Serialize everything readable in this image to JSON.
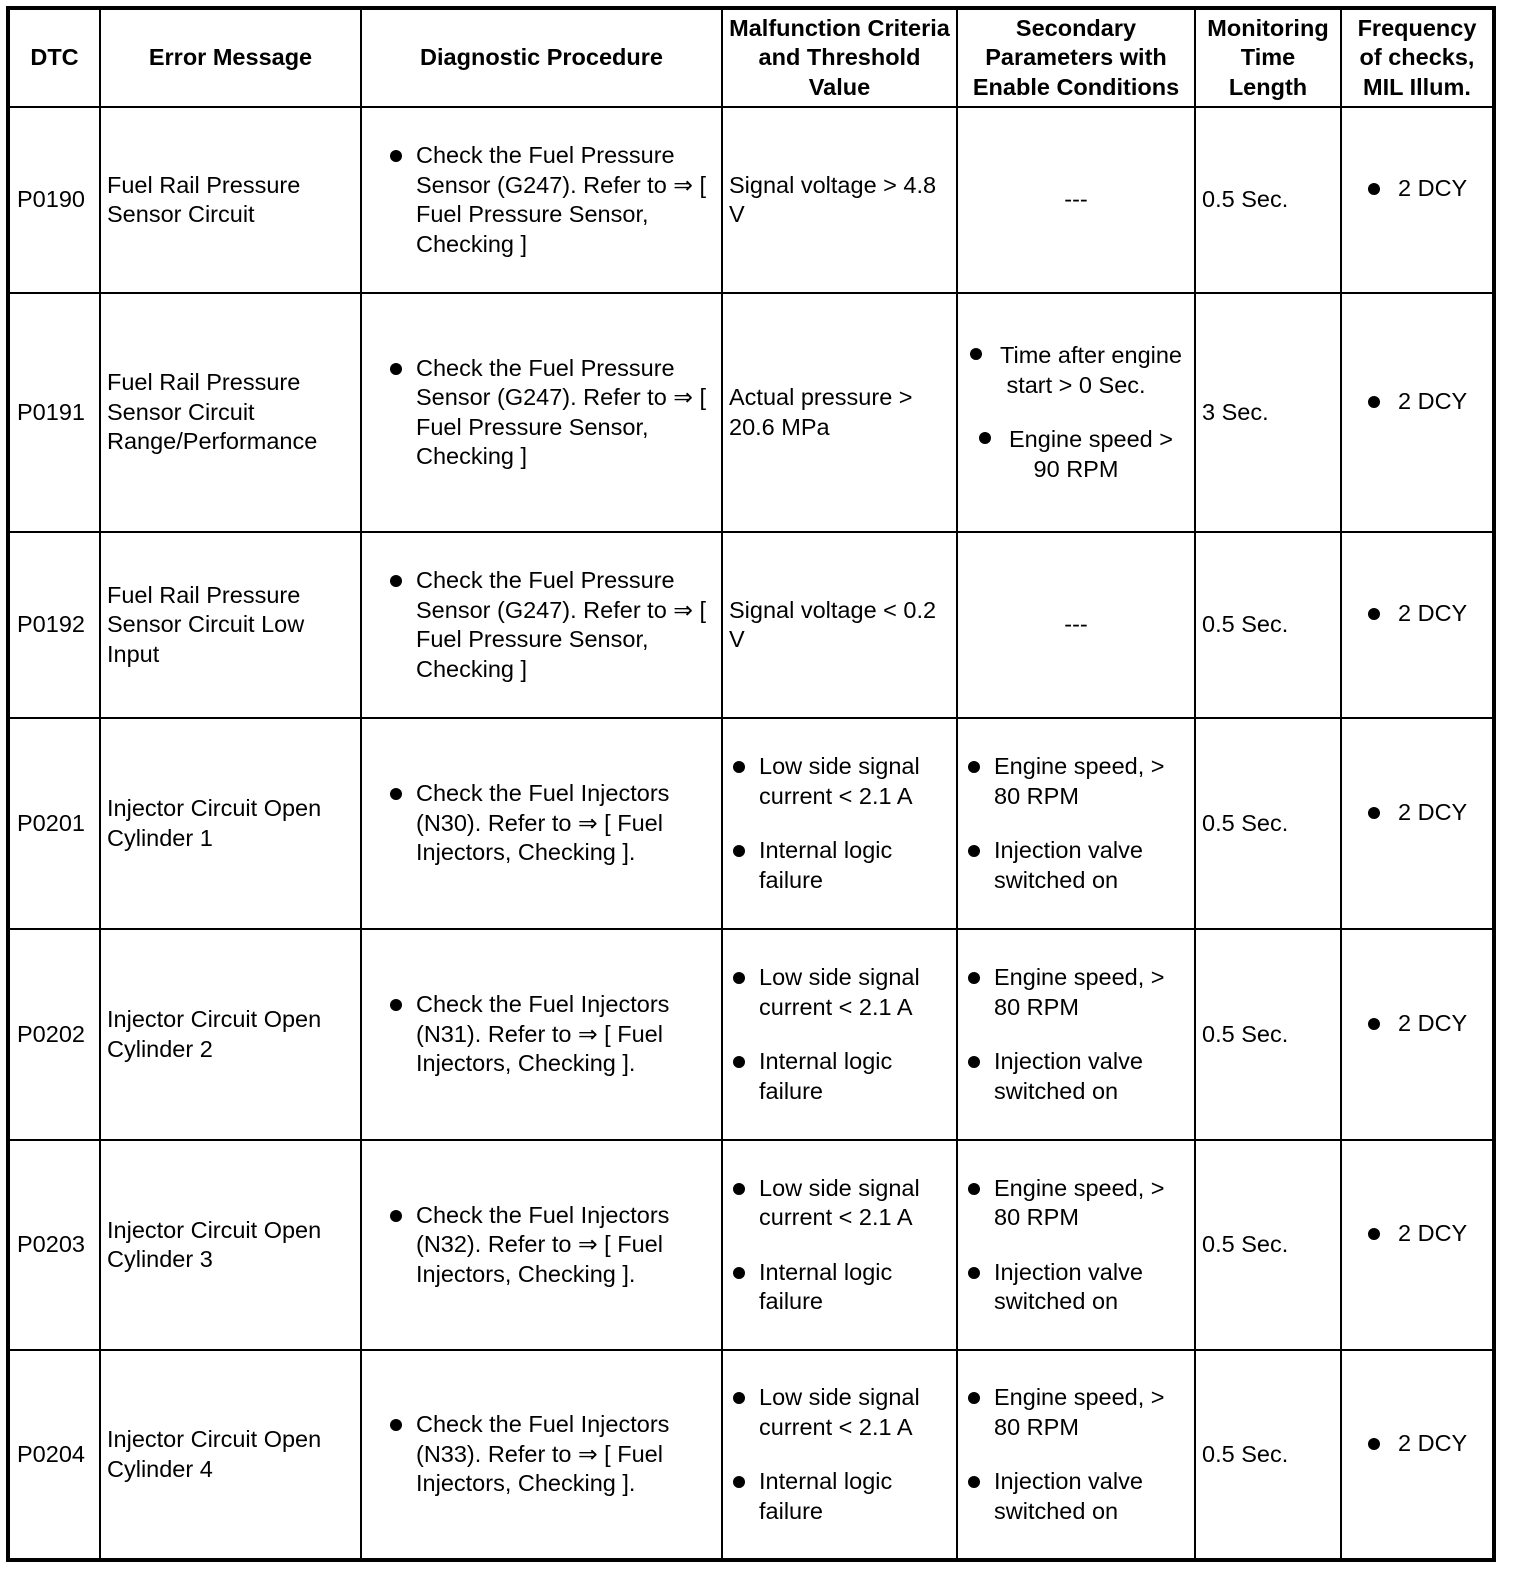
{
  "headers": {
    "dtc": "DTC",
    "error_message": "Error Message",
    "diagnostic_procedure": "Diagnostic Procedure",
    "malfunction_criteria": "Malfunction Criteria and Threshold Value",
    "secondary_parameters": "Secondary Parameters with Enable Conditions",
    "monitoring_time": "Monitoring Time Length",
    "frequency": "Frequency of checks, MIL Illum."
  },
  "rows": [
    {
      "dtc": "P0190",
      "error_message": "Fuel Rail Pressure Sensor Circuit",
      "diagnostic_procedure": [
        "Check the Fuel Pressure Sensor (G247). Refer to ⇒ [ Fuel Pressure Sensor, Checking ]"
      ],
      "malfunction_criteria": "Signal voltage > 4.8 V",
      "secondary_parameters": "---",
      "monitoring_time": "0.5 Sec.",
      "frequency": [
        "2 DCY"
      ]
    },
    {
      "dtc": "P0191",
      "error_message": "Fuel Rail Pressure Sensor Circuit Range/Performance",
      "diagnostic_procedure": [
        "Check the Fuel Pressure Sensor (G247). Refer to ⇒ [ Fuel Pressure Sensor, Checking ]"
      ],
      "malfunction_criteria": "Actual pressure > 20.6 MPa",
      "secondary_parameters": [
        "Time after engine start > 0 Sec.",
        "Engine speed > 90 RPM"
      ],
      "monitoring_time": "3 Sec.",
      "frequency": [
        "2 DCY"
      ]
    },
    {
      "dtc": "P0192",
      "error_message": "Fuel Rail Pressure Sensor Circuit Low Input",
      "diagnostic_procedure": [
        "Check the Fuel Pressure Sensor (G247). Refer to ⇒ [ Fuel Pressure Sensor, Checking ]"
      ],
      "malfunction_criteria": "Signal voltage < 0.2 V",
      "secondary_parameters": "---",
      "monitoring_time": "0.5 Sec.",
      "frequency": [
        "2 DCY"
      ]
    },
    {
      "dtc": "P0201",
      "error_message": "Injector Circuit Open Cylinder 1",
      "diagnostic_procedure": [
        "Check the Fuel Injectors (N30). Refer to ⇒ [ Fuel Injectors, Checking ]."
      ],
      "malfunction_criteria": [
        "Low side signal current < 2.1 A",
        "Internal logic failure"
      ],
      "secondary_parameters": [
        "Engine speed, > 80 RPM",
        "Injection valve switched on"
      ],
      "monitoring_time": "0.5 Sec.",
      "frequency": [
        "2 DCY"
      ]
    },
    {
      "dtc": "P0202",
      "error_message": "Injector Circuit Open Cylinder 2",
      "diagnostic_procedure": [
        "Check the Fuel Injectors (N31). Refer to ⇒ [ Fuel Injectors, Checking ]."
      ],
      "malfunction_criteria": [
        "Low side signal current < 2.1 A",
        "Internal logic failure"
      ],
      "secondary_parameters": [
        "Engine speed, > 80 RPM",
        "Injection valve switched on"
      ],
      "monitoring_time": "0.5 Sec.",
      "frequency": [
        "2 DCY"
      ]
    },
    {
      "dtc": "P0203",
      "error_message": "Injector Circuit Open Cylinder 3",
      "diagnostic_procedure": [
        "Check the Fuel Injectors (N32). Refer to ⇒ [ Fuel Injectors, Checking ]."
      ],
      "malfunction_criteria": [
        "Low side signal current < 2.1 A",
        "Internal logic failure"
      ],
      "secondary_parameters": [
        "Engine speed, > 80 RPM",
        "Injection valve switched on"
      ],
      "monitoring_time": "0.5 Sec.",
      "frequency": [
        "2 DCY"
      ]
    },
    {
      "dtc": "P0204",
      "error_message": "Injector Circuit Open Cylinder 4",
      "diagnostic_procedure": [
        "Check the Fuel Injectors (N33). Refer to ⇒ [ Fuel Injectors, Checking ]."
      ],
      "malfunction_criteria": [
        "Low side signal current < 2.1 A",
        "Internal logic failure"
      ],
      "secondary_parameters": [
        "Engine speed, > 80 RPM",
        "Injection valve switched on"
      ],
      "monitoring_time": "0.5 Sec.",
      "frequency": [
        "2 DCY"
      ]
    }
  ]
}
